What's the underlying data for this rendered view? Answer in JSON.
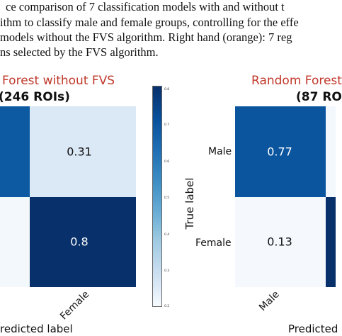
{
  "caption": {
    "lines": [
      "ce comparison of 7 classification models with and without t",
      "ithm to classify male and female groups, controlling for the effe",
      "models without the FVS algorithm. Right hand (orange): 7 reg",
      "ns selected by the FVS algorithm."
    ]
  },
  "left_panel": {
    "title": "Forest without FVS",
    "subtitle": "(246 ROIs)",
    "x_tick": "Female",
    "x_label": "redicted label",
    "cells": [
      {
        "value": "0.31"
      },
      {
        "value": "0.8"
      }
    ]
  },
  "right_panel": {
    "title": "Random Forest",
    "subtitle": "(87 RO",
    "y_label": "True label",
    "y_ticks": [
      "Male",
      "Female"
    ],
    "x_tick": "Male",
    "x_label": "Predicted",
    "cells": [
      {
        "value": "0.77"
      },
      {
        "value": "0.13"
      }
    ]
  },
  "colorbar": {
    "ticks": [
      "0.8",
      "0.7",
      "0.6",
      "0.5",
      "0.4",
      "0.3",
      "0.2"
    ]
  },
  "chart_data": [
    {
      "type": "heatmap",
      "title": "Forest without FVS (246 ROIs)",
      "xlabel": "redicted label",
      "x_categories": [
        "",
        "Female"
      ],
      "y_categories": [
        "",
        ""
      ],
      "values": [
        [
          null,
          0.31
        ],
        [
          null,
          0.8
        ]
      ],
      "colormap": "Blues",
      "clim": [
        0.2,
        0.8
      ]
    },
    {
      "type": "heatmap",
      "title": "Random Forest (87 RO",
      "xlabel": "Predicted",
      "ylabel": "True label",
      "x_categories": [
        "Male",
        ""
      ],
      "y_categories": [
        "Male",
        "Female"
      ],
      "values": [
        [
          0.77,
          null
        ],
        [
          0.13,
          null
        ]
      ],
      "colormap": "Blues",
      "clim": [
        0.2,
        0.8
      ]
    }
  ],
  "colors": {
    "dark_blue": "#08519c",
    "deep_blue": "#0a3f80",
    "light_blue": "#dbe8f5",
    "very_light": "#f3f8fd",
    "title_red": "#c0392b"
  }
}
